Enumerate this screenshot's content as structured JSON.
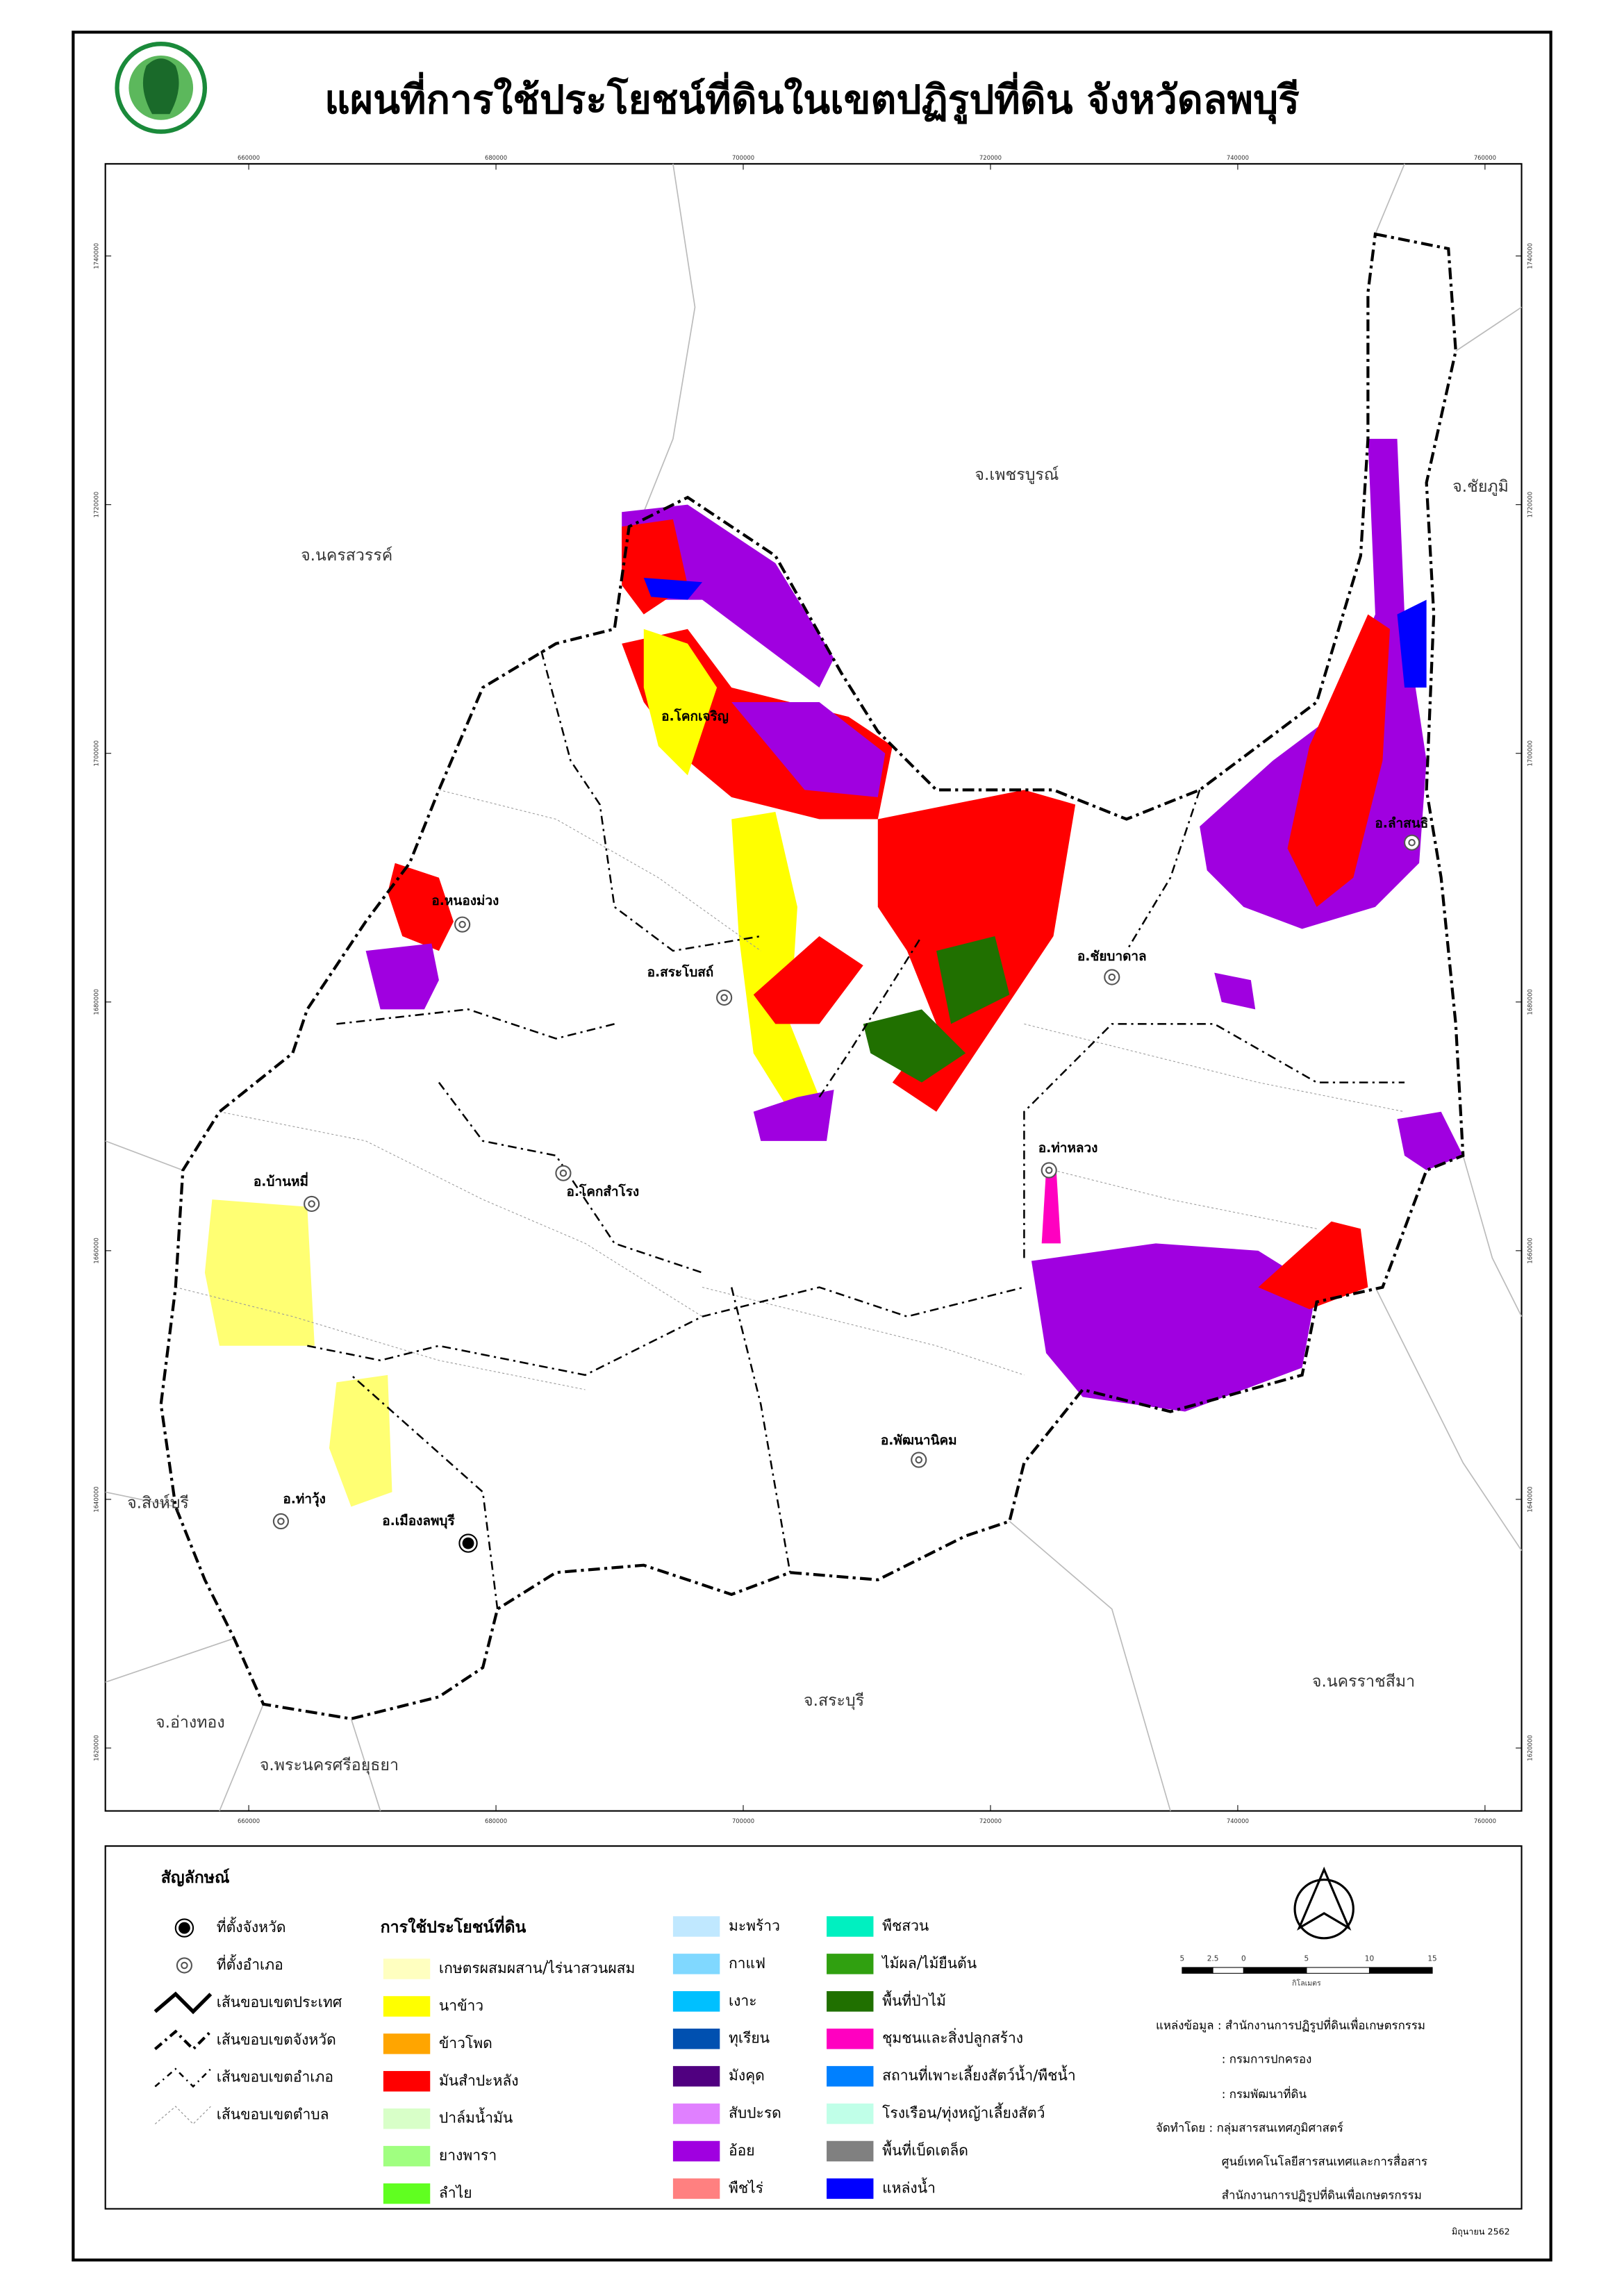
{
  "title": "แผนที่การใช้ประโยชน์ที่ดินในเขตปฏิรูปที่ดิน จังหวัดลพบุรี",
  "map": {
    "x_ticks": [
      660000,
      680000,
      700000,
      720000,
      740000,
      760000
    ],
    "y_ticks": [
      1740000,
      1720000,
      1700000,
      1680000,
      1660000,
      1640000,
      1620000
    ],
    "provinces": [
      "จ.เพชรบูรณ์",
      "จ.ชัยภูมิ",
      "จ.นครสวรรค์",
      "จ.สิงห์บุรี",
      "จ.อ่างทอง",
      "จ.พระนครศรีอยุธยา",
      "จ.สระบุรี",
      "จ.นครราชสีมา"
    ],
    "districts": [
      "อ.ลำสนธิ",
      "อ.ชัยบาดาล",
      "อ.ท่าหลวง",
      "อ.พัฒนานิคม",
      "อ.เมืองลพบุรี",
      "อ.ท่าวุ้ง",
      "อ.บ้านหมี่",
      "อ.โคกสำโรง",
      "อ.สระโบสถ์",
      "อ.หนองม่วง",
      "อ.โคกเจริญ"
    ]
  },
  "legend": {
    "title": "สัญลักษณ์",
    "symbols": [
      "ที่ตั้งจังหวัด",
      "ที่ตั้งอำเภอ",
      "เส้นขอบเขตประเทศ",
      "เส้นขอบเขตจังหวัด",
      "เส้นขอบเขตอำเภอ",
      "เส้นขอบเขตตำบล"
    ],
    "landuse_title": "การใช้ประโยชน์ที่ดิน",
    "landuse": [
      {
        "label": "เกษตรผสมผสาน/ไร่นาสวนผสม",
        "color": "#ffffc0"
      },
      {
        "label": "นาข้าว",
        "color": "#ffff00"
      },
      {
        "label": "ข้าวโพด",
        "color": "#ffa500"
      },
      {
        "label": "มันสำปะหลัง",
        "color": "#ff0000"
      },
      {
        "label": "ปาล์มน้ำมัน",
        "color": "#d8ffc8"
      },
      {
        "label": "ยางพารา",
        "color": "#a0ff80"
      },
      {
        "label": "ลำไย",
        "color": "#60ff20"
      },
      {
        "label": "มะพร้าว",
        "color": "#c0e8ff"
      },
      {
        "label": "กาแฟ",
        "color": "#80d8ff"
      },
      {
        "label": "เงาะ",
        "color": "#00c0ff"
      },
      {
        "label": "ทุเรียน",
        "color": "#0050b0"
      },
      {
        "label": "มังคุด",
        "color": "#500080"
      },
      {
        "label": "สับปะรด",
        "color": "#e080ff"
      },
      {
        "label": "อ้อย",
        "color": "#a000e0"
      },
      {
        "label": "พืชไร่",
        "color": "#ff8080"
      },
      {
        "label": "พืชสวน",
        "color": "#00f0c0"
      },
      {
        "label": "ไม้ผล/ไม้ยืนต้น",
        "color": "#30a010"
      },
      {
        "label": "พื้นที่ป่าไม้",
        "color": "#207000"
      },
      {
        "label": "ชุมชนและสิ่งปลูกสร้าง",
        "color": "#ff00c0"
      },
      {
        "label": "สถานที่เพาะเลี้ยงสัตว์น้ำ/พืชน้ำ",
        "color": "#0080ff"
      },
      {
        "label": "โรงเรือน/ทุ่งหญ้าเลี้ยงสัตว์",
        "color": "#c0ffe8"
      },
      {
        "label": "พื้นที่เบ็ดเตล็ด",
        "color": "#808080"
      },
      {
        "label": "แหล่งน้ำ",
        "color": "#0000ff"
      }
    ]
  },
  "scale": {
    "ticks": [
      "5",
      "2.5",
      "0",
      "5",
      "10",
      "15"
    ],
    "unit": "กิโลเมตร"
  },
  "credits": [
    "แหล่งข้อมูล : สำนักงานการปฏิรูปที่ดินเพื่อเกษตรกรรม",
    ": กรมการปกครอง",
    ": กรมพัฒนาที่ดิน",
    "จัดทำโดย : กลุ่มสารสนเทศภูมิศาสตร์",
    "ศูนย์เทคโนโลยีสารสนเทศและการสื่อสาร",
    "สำนักงานการปฏิรูปที่ดินเพื่อเกษตรกรรม"
  ],
  "date": "มิถุนายน 2562"
}
